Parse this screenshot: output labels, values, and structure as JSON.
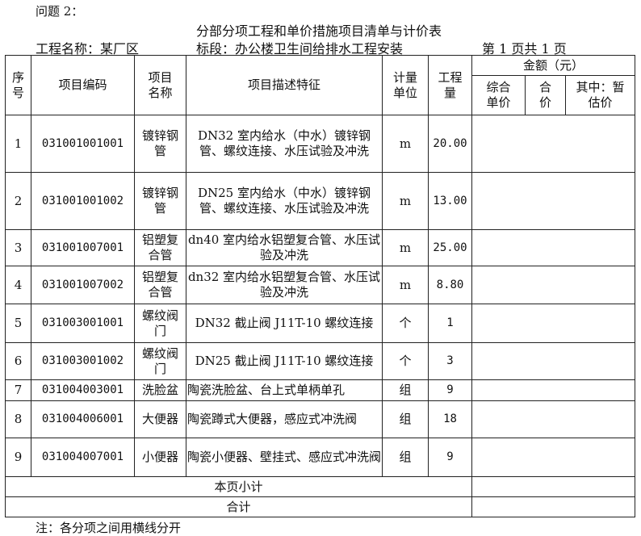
{
  "question": "问题 2：",
  "title": "分部分项工程和单价措施项目清单与计价表",
  "project_name": "工程名称：某厂区",
  "section": "标段：办公楼卫生间给排水工程安装",
  "page": "第 1 页共 1 页",
  "headers": {
    "seq": "序号",
    "code": "项目编码",
    "name": "项目名称",
    "desc": "项目描述特征",
    "unit": "计量单位",
    "qty": "工程量",
    "amount": "金额（元）",
    "unit_price": "综合单价",
    "total": "合价",
    "provisional": "其中：暂估价"
  },
  "rows": [
    {
      "seq": "1",
      "code": "031001001001",
      "name": "镀锌钢管",
      "desc": "DN32 室内给水（中水）镀锌钢管、螺纹连接、水压试验及冲洗",
      "unit": "m",
      "qty": "20.00"
    },
    {
      "seq": "2",
      "code": "031001001002",
      "name": "镀锌钢管",
      "desc": "DN25 室内给水（中水）镀锌钢管、螺纹连接、水压试验及冲洗",
      "unit": "m",
      "qty": "13.00"
    },
    {
      "seq": "3",
      "code": "031001007001",
      "name": "铝塑复合管",
      "desc": "dn40 室内给水铝塑复合管、水压试验及冲洗",
      "unit": "m",
      "qty": "25.00"
    },
    {
      "seq": "4",
      "code": "031001007002",
      "name": "铝塑复合管",
      "desc": "dn32 室内给水铝塑复合管、水压试验及冲洗",
      "unit": "m",
      "qty": "8.80"
    },
    {
      "seq": "5",
      "code": "031003001001",
      "name": "螺纹阀门",
      "desc": "DN32 截止阀 J11T-10 螺纹连接",
      "unit": "个",
      "qty": "1"
    },
    {
      "seq": "6",
      "code": "031003001002",
      "name": "螺纹阀门",
      "desc": "DN25 截止阀 J11T-10 螺纹连接",
      "unit": "个",
      "qty": "3"
    },
    {
      "seq": "7",
      "code": "031004003001",
      "name": "洗脸盆",
      "desc": "陶瓷洗脸盆、台上式单柄单孔",
      "unit": "组",
      "qty": "9"
    },
    {
      "seq": "8",
      "code": "031004006001",
      "name": "大便器",
      "desc": "陶瓷蹲式大便器，感应式冲洗阀",
      "unit": "组",
      "qty": "18"
    },
    {
      "seq": "9",
      "code": "031004007001",
      "name": "小便器",
      "desc": "陶瓷小便器、壁挂式、感应式冲洗阀",
      "unit": "组",
      "qty": "9"
    }
  ],
  "subtotal": "本页小计",
  "total": "合计",
  "note": "注：各分项之间用横线分开"
}
